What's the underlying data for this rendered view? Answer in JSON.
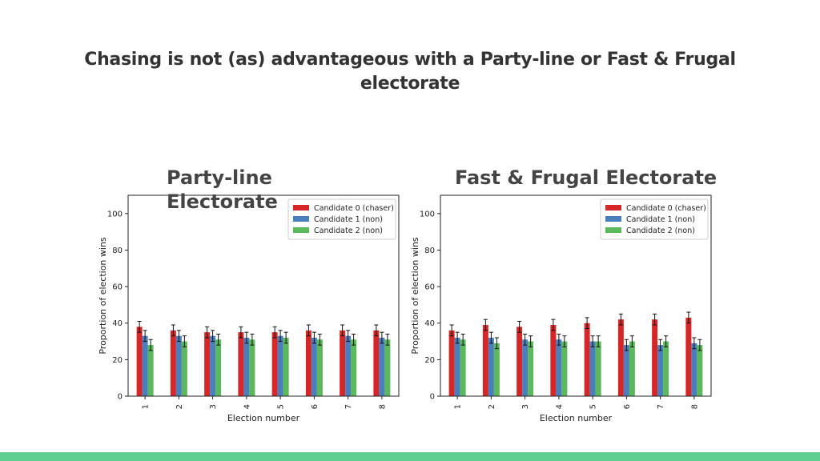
{
  "slide": {
    "title": "Chasing is not (as) advantageous with a Party-line or Fast & Frugal electorate",
    "footer_color": "#5ecf90"
  },
  "chart_data": [
    {
      "type": "bar",
      "title": "Party-line Electorate",
      "xlabel": "Election number",
      "ylabel": "Proportion of election wins",
      "categories": [
        "1",
        "2",
        "3",
        "4",
        "5",
        "6",
        "7",
        "8"
      ],
      "ylim": [
        0,
        110
      ],
      "yticks": [
        0,
        20,
        40,
        60,
        80,
        100
      ],
      "legend_position": "top-right",
      "grid": false,
      "series": [
        {
          "name": "Candidate 0 (chaser)",
          "color": "#d62728",
          "values": [
            38,
            36,
            35,
            35,
            35,
            36,
            36,
            36
          ],
          "error": [
            3,
            3,
            3,
            3,
            3,
            3,
            3,
            3
          ]
        },
        {
          "name": "Candidate 1 (non)",
          "color": "#4a7fbd",
          "values": [
            33,
            33,
            33,
            32,
            33,
            32,
            33,
            32
          ],
          "error": [
            3,
            3,
            3,
            3,
            3,
            3,
            3,
            3
          ]
        },
        {
          "name": "Candidate 2 (non)",
          "color": "#5cb85c",
          "values": [
            28,
            30,
            31,
            31,
            32,
            31,
            31,
            31
          ],
          "error": [
            3,
            3,
            3,
            3,
            3,
            3,
            3,
            3
          ]
        }
      ]
    },
    {
      "type": "bar",
      "title": "Fast & Frugal Electorate",
      "xlabel": "Election number",
      "ylabel": "Proportion of election wins",
      "categories": [
        "1",
        "2",
        "3",
        "4",
        "5",
        "6",
        "7",
        "8"
      ],
      "ylim": [
        0,
        110
      ],
      "yticks": [
        0,
        20,
        40,
        60,
        80,
        100
      ],
      "legend_position": "top-right",
      "grid": false,
      "series": [
        {
          "name": "Candidate 0 (chaser)",
          "color": "#d62728",
          "values": [
            36,
            39,
            38,
            39,
            40,
            42,
            42,
            43
          ],
          "error": [
            3,
            3,
            3,
            3,
            3,
            3,
            3,
            3
          ]
        },
        {
          "name": "Candidate 1 (non)",
          "color": "#4a7fbd",
          "values": [
            32,
            32,
            31,
            31,
            30,
            28,
            28,
            29
          ],
          "error": [
            3,
            3,
            3,
            3,
            3,
            3,
            3,
            3
          ]
        },
        {
          "name": "Candidate 2 (non)",
          "color": "#5cb85c",
          "values": [
            31,
            29,
            30,
            30,
            30,
            30,
            30,
            28
          ],
          "error": [
            3,
            3,
            3,
            3,
            3,
            3,
            3,
            3
          ]
        }
      ]
    }
  ]
}
